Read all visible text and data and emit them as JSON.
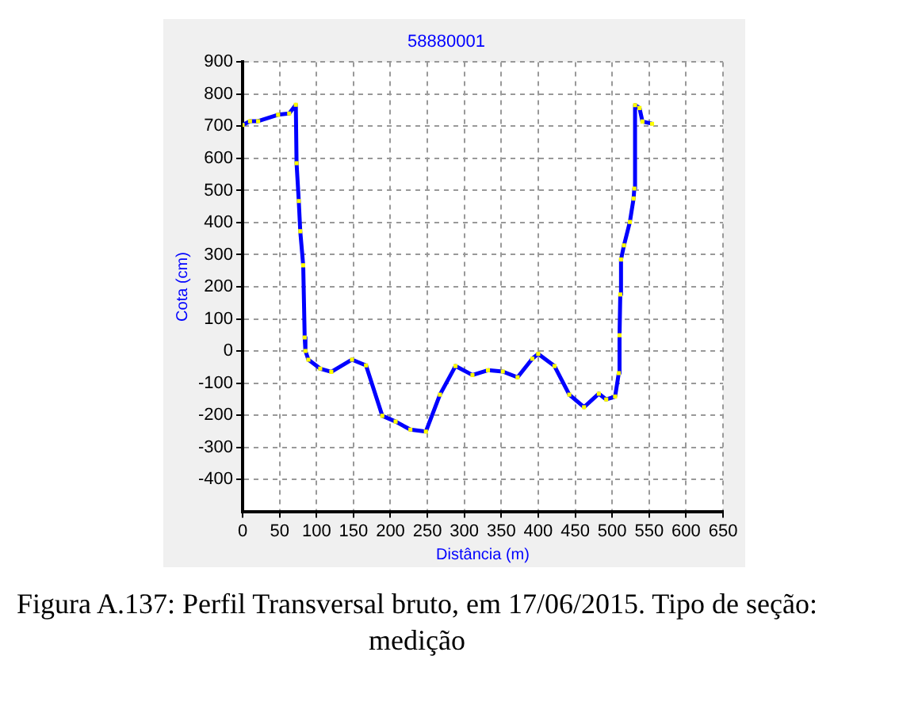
{
  "chart_data": {
    "type": "line",
    "title": "58880001",
    "xlabel": "Distância (m)",
    "ylabel": "Cota (cm)",
    "annotations": [
      "Figura A.137: Perfil Transversal bruto, em 17/06/2015. Tipo de seção: medição"
    ],
    "series": [
      {
        "color": "#0000ff",
        "x": [
          0,
          10,
          21,
          48,
          63,
          72,
          73,
          76,
          78,
          82,
          84,
          85,
          89,
          105,
          120,
          148,
          167,
          189,
          207,
          227,
          248,
          267,
          288,
          311,
          332,
          352,
          372,
          392,
          400,
          422,
          442,
          462,
          482,
          492,
          504,
          509,
          510,
          511,
          512,
          516,
          524,
          529,
          530,
          531,
          537,
          541,
          554
        ],
        "values": [
          704,
          716,
          716,
          736,
          740,
          767,
          585,
          467,
          373,
          267,
          42,
          0,
          -27,
          -55,
          -65,
          -27,
          -45,
          -202,
          -220,
          -245,
          -251,
          -136,
          -47,
          -75,
          -60,
          -64,
          -82,
          -24,
          -9,
          -47,
          -136,
          -175,
          -133,
          -151,
          -142,
          -69,
          49,
          176,
          285,
          329,
          402,
          475,
          506,
          766,
          757,
          715,
          708
        ]
      }
    ],
    "marker": "square",
    "grid": true,
    "legend": false,
    "xlim": [
      0,
      650
    ],
    "xticks": [
      0,
      50,
      100,
      150,
      200,
      250,
      300,
      350,
      400,
      450,
      500,
      550,
      600,
      650
    ],
    "ylim": [
      -500,
      900
    ],
    "yticks": [
      -400,
      -300,
      -200,
      -100,
      0,
      100,
      200,
      300,
      400,
      500,
      600,
      700,
      800,
      900
    ]
  }
}
